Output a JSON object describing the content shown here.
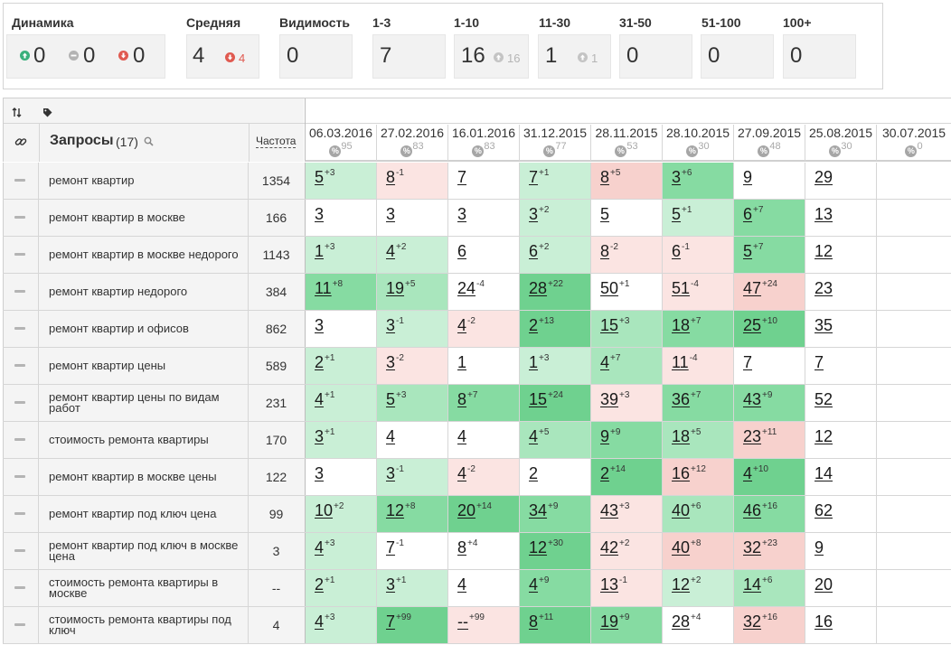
{
  "summary": {
    "dynamics": {
      "label": "Динамика",
      "up": "0",
      "same": "0",
      "down": "0"
    },
    "average": {
      "label": "Средняя",
      "value": "4",
      "change": "4"
    },
    "visibility": {
      "label": "Видимость",
      "value": "0"
    },
    "r1_3": {
      "label": "1-3",
      "value": "7"
    },
    "r1_10": {
      "label": "1-10",
      "value": "16",
      "sub": "16"
    },
    "r11_30": {
      "label": "11-30",
      "value": "1",
      "sub": "1"
    },
    "r31_50": {
      "label": "31-50",
      "value": "0"
    },
    "r51_100": {
      "label": "51-100",
      "value": "0"
    },
    "r100p": {
      "label": "100+",
      "value": "0"
    }
  },
  "colors": {
    "up": "#3ab07c",
    "down": "#e05a50",
    "neutral": "#b3b3b3",
    "g1": "#c9efd6",
    "g2": "#a9e6bd",
    "g3": "#86dba2",
    "g4": "#6fd18f",
    "r1": "#fbe4e2",
    "r2": "#f7d1cd",
    "w": "#ffffff"
  },
  "table": {
    "queries_header": "Запросы",
    "queries_count": "(17)",
    "freq_header": "Частота",
    "dates": [
      {
        "date": "06.03.2016",
        "vis": "95"
      },
      {
        "date": "27.02.2016",
        "vis": "83"
      },
      {
        "date": "16.01.2016",
        "vis": "83"
      },
      {
        "date": "31.12.2015",
        "vis": "77"
      },
      {
        "date": "28.11.2015",
        "vis": "53"
      },
      {
        "date": "28.10.2015",
        "vis": "30"
      },
      {
        "date": "27.09.2015",
        "vis": "48"
      },
      {
        "date": "25.08.2015",
        "vis": "30"
      },
      {
        "date": "30.07.2015",
        "vis": "0"
      }
    ],
    "rows": [
      {
        "q": "ремонт квартир",
        "f": "1354",
        "cells": [
          [
            "5",
            "+3",
            "g1"
          ],
          [
            "8",
            "-1",
            "r1"
          ],
          [
            "7",
            "",
            "w"
          ],
          [
            "7",
            "+1",
            "g1"
          ],
          [
            "8",
            "+5",
            "r2"
          ],
          [
            "3",
            "+6",
            "g3"
          ],
          [
            "9",
            "",
            "w"
          ],
          [
            "29",
            "",
            "w"
          ],
          [
            "",
            "",
            "w"
          ]
        ]
      },
      {
        "q": "ремонт квартир в москве",
        "f": "166",
        "cells": [
          [
            "3",
            "",
            "w"
          ],
          [
            "3",
            "",
            "w"
          ],
          [
            "3",
            "",
            "w"
          ],
          [
            "3",
            "+2",
            "g1"
          ],
          [
            "5",
            "",
            "w"
          ],
          [
            "5",
            "+1",
            "g1"
          ],
          [
            "6",
            "+7",
            "g3"
          ],
          [
            "13",
            "",
            "w"
          ],
          [
            "",
            "",
            "w"
          ]
        ]
      },
      {
        "q": "ремонт квартир в москве недорого",
        "f": "1143",
        "cells": [
          [
            "1",
            "+3",
            "g1"
          ],
          [
            "4",
            "+2",
            "g1"
          ],
          [
            "6",
            "",
            "w"
          ],
          [
            "6",
            "+2",
            "g1"
          ],
          [
            "8",
            "-2",
            "r1"
          ],
          [
            "6",
            "-1",
            "r1"
          ],
          [
            "5",
            "+7",
            "g3"
          ],
          [
            "12",
            "",
            "w"
          ],
          [
            "",
            "",
            "w"
          ]
        ]
      },
      {
        "q": "ремонт квартир недорого",
        "f": "384",
        "cells": [
          [
            "11",
            "+8",
            "g3"
          ],
          [
            "19",
            "+5",
            "g2"
          ],
          [
            "24",
            "-4",
            "w"
          ],
          [
            "28",
            "+22",
            "g4"
          ],
          [
            "50",
            "+1",
            "w"
          ],
          [
            "51",
            "-4",
            "r1"
          ],
          [
            "47",
            "+24",
            "r2"
          ],
          [
            "23",
            "",
            "w"
          ],
          [
            "",
            "",
            "w"
          ]
        ]
      },
      {
        "q": "ремонт квартир и офисов",
        "f": "862",
        "cells": [
          [
            "3",
            "",
            "w"
          ],
          [
            "3",
            "-1",
            "g1"
          ],
          [
            "4",
            "-2",
            "r1"
          ],
          [
            "2",
            "+13",
            "g4"
          ],
          [
            "15",
            "+3",
            "g2"
          ],
          [
            "18",
            "+7",
            "g3"
          ],
          [
            "25",
            "+10",
            "g4"
          ],
          [
            "35",
            "",
            "w"
          ],
          [
            "",
            "",
            "w"
          ]
        ]
      },
      {
        "q": "ремонт квартир цены",
        "f": "589",
        "cells": [
          [
            "2",
            "+1",
            "g1"
          ],
          [
            "3",
            "-2",
            "r1"
          ],
          [
            "1",
            "",
            "w"
          ],
          [
            "1",
            "+3",
            "g1"
          ],
          [
            "4",
            "+7",
            "g2"
          ],
          [
            "11",
            "-4",
            "r1"
          ],
          [
            "7",
            "",
            "w"
          ],
          [
            "7",
            "",
            "w"
          ],
          [
            "",
            "",
            "w"
          ]
        ]
      },
      {
        "q": "ремонт квартир цены по видам работ",
        "f": "231",
        "cells": [
          [
            "4",
            "+1",
            "g1"
          ],
          [
            "5",
            "+3",
            "g2"
          ],
          [
            "8",
            "+7",
            "g3"
          ],
          [
            "15",
            "+24",
            "g4"
          ],
          [
            "39",
            "+3",
            "r1"
          ],
          [
            "36",
            "+7",
            "g3"
          ],
          [
            "43",
            "+9",
            "g3"
          ],
          [
            "52",
            "",
            "w"
          ],
          [
            "",
            "",
            "w"
          ]
        ]
      },
      {
        "q": "стоимость ремонта квартиры",
        "f": "170",
        "cells": [
          [
            "3",
            "+1",
            "g1"
          ],
          [
            "4",
            "",
            "w"
          ],
          [
            "4",
            "",
            "w"
          ],
          [
            "4",
            "+5",
            "g2"
          ],
          [
            "9",
            "+9",
            "g3"
          ],
          [
            "18",
            "+5",
            "g2"
          ],
          [
            "23",
            "+11",
            "r2"
          ],
          [
            "12",
            "",
            "w"
          ],
          [
            "",
            "",
            "w"
          ]
        ]
      },
      {
        "q": "ремонт квартир в москве цены",
        "f": "122",
        "cells": [
          [
            "3",
            "",
            "w"
          ],
          [
            "3",
            "-1",
            "g1"
          ],
          [
            "4",
            "-2",
            "r1"
          ],
          [
            "2",
            "",
            "w"
          ],
          [
            "2",
            "+14",
            "g4"
          ],
          [
            "16",
            "+12",
            "r2"
          ],
          [
            "4",
            "+10",
            "g4"
          ],
          [
            "14",
            "",
            "w"
          ],
          [
            "",
            "",
            "w"
          ]
        ]
      },
      {
        "q": "ремонт квартир под ключ цена",
        "f": "99",
        "cells": [
          [
            "10",
            "+2",
            "g1"
          ],
          [
            "12",
            "+8",
            "g3"
          ],
          [
            "20",
            "+14",
            "g4"
          ],
          [
            "34",
            "+9",
            "g3"
          ],
          [
            "43",
            "+3",
            "r1"
          ],
          [
            "40",
            "+6",
            "g2"
          ],
          [
            "46",
            "+16",
            "g3"
          ],
          [
            "62",
            "",
            "w"
          ],
          [
            "",
            "",
            "w"
          ]
        ]
      },
      {
        "q": "ремонт квартир под ключ в москве цена",
        "f": "3",
        "cells": [
          [
            "4",
            "+3",
            "g1"
          ],
          [
            "7",
            "-1",
            "w"
          ],
          [
            "8",
            "+4",
            "w"
          ],
          [
            "12",
            "+30",
            "g4"
          ],
          [
            "42",
            "+2",
            "r1"
          ],
          [
            "40",
            "+8",
            "r2"
          ],
          [
            "32",
            "+23",
            "r2"
          ],
          [
            "9",
            "",
            "w"
          ],
          [
            "",
            "",
            "w"
          ]
        ]
      },
      {
        "q": "стоимость ремонта квартиры в москве",
        "f": "--",
        "cells": [
          [
            "2",
            "+1",
            "g1"
          ],
          [
            "3",
            "+1",
            "g1"
          ],
          [
            "4",
            "",
            "w"
          ],
          [
            "4",
            "+9",
            "g3"
          ],
          [
            "13",
            "-1",
            "r1"
          ],
          [
            "12",
            "+2",
            "g1"
          ],
          [
            "14",
            "+6",
            "g2"
          ],
          [
            "20",
            "",
            "w"
          ],
          [
            "",
            "",
            "w"
          ]
        ]
      },
      {
        "q": "стоимость ремонта квартиры под ключ",
        "f": "4",
        "cells": [
          [
            "4",
            "+3",
            "g1"
          ],
          [
            "7",
            "+99",
            "g4"
          ],
          [
            "--",
            "+99",
            "r1"
          ],
          [
            "8",
            "+11",
            "g4"
          ],
          [
            "19",
            "+9",
            "g3"
          ],
          [
            "28",
            "+4",
            "w"
          ],
          [
            "32",
            "+16",
            "r2"
          ],
          [
            "16",
            "",
            "w"
          ],
          [
            "",
            "",
            "w"
          ]
        ]
      }
    ]
  }
}
